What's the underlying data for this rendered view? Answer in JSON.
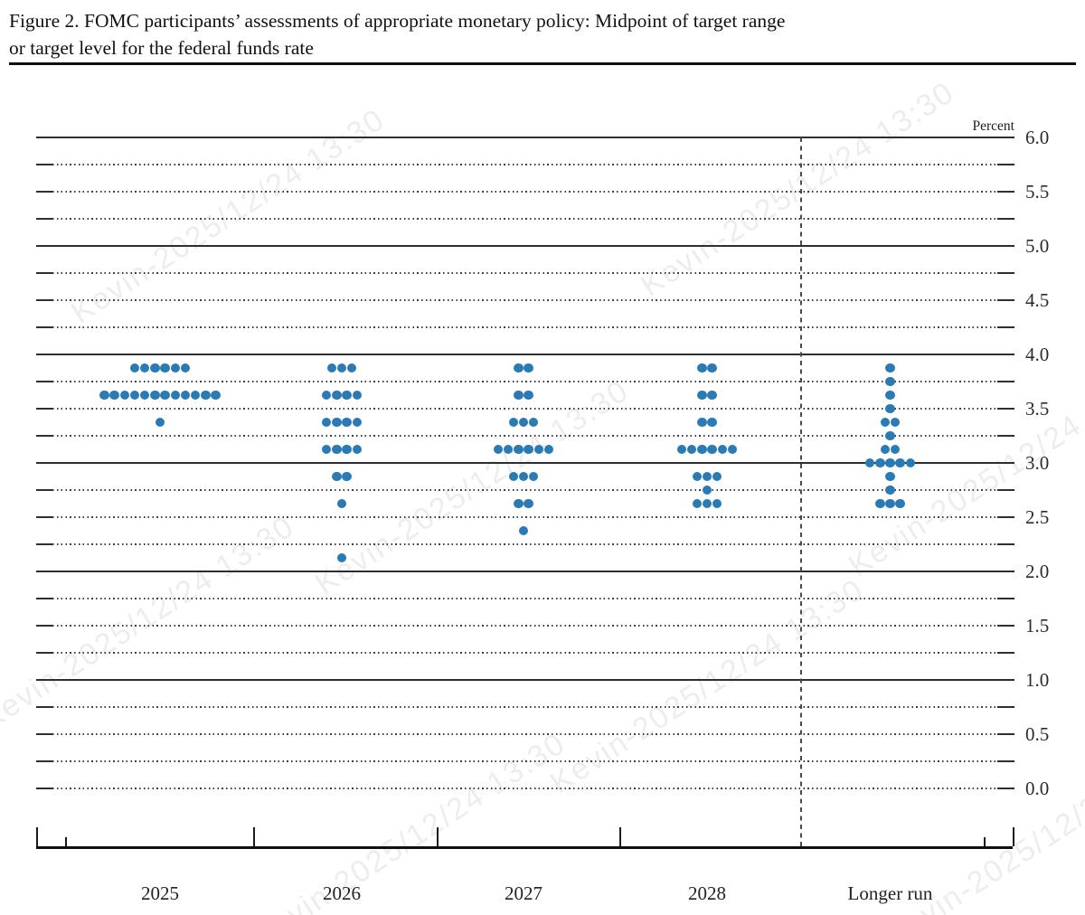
{
  "title": {
    "line1": "Figure 2. FOMC participants’ assessments of appropriate monetary policy: Midpoint of target range",
    "line2": "or target level for the federal funds rate"
  },
  "watermark": {
    "text": "Kevin-2025/12/24 13:30"
  },
  "chart_data": {
    "type": "scatter",
    "subtype": "fomc-dot-plot",
    "title": "Figure 2. FOMC participants’ assessments of appropriate monetary policy: Midpoint of target range or target level for the federal funds rate",
    "unit_label": "Percent",
    "x_categories": [
      "2025",
      "2026",
      "2027",
      "2028",
      "Longer run"
    ],
    "y_axis": {
      "min": 0.0,
      "max": 6.0,
      "tick_step": 0.5,
      "grid_step": 0.25,
      "tick_labels": [
        "6.0",
        "5.5",
        "5.0",
        "4.5",
        "4.0",
        "3.5",
        "3.0",
        "2.5",
        "2.0",
        "1.5",
        "1.0",
        "0.5",
        "0.0"
      ],
      "solid_gridlines": [
        6.0,
        5.0,
        4.0,
        3.0,
        2.0,
        1.0
      ],
      "grid": true
    },
    "separator_before_category": "Longer run",
    "series": [
      {
        "category": "2025",
        "dots": [
          {
            "rate": 3.875,
            "count": 6
          },
          {
            "rate": 3.625,
            "count": 12
          },
          {
            "rate": 3.375,
            "count": 1
          }
        ]
      },
      {
        "category": "2026",
        "dots": [
          {
            "rate": 3.875,
            "count": 3
          },
          {
            "rate": 3.625,
            "count": 4
          },
          {
            "rate": 3.375,
            "count": 4
          },
          {
            "rate": 3.125,
            "count": 4
          },
          {
            "rate": 2.875,
            "count": 2
          },
          {
            "rate": 2.625,
            "count": 1
          },
          {
            "rate": 2.125,
            "count": 1
          }
        ]
      },
      {
        "category": "2027",
        "dots": [
          {
            "rate": 3.875,
            "count": 2
          },
          {
            "rate": 3.625,
            "count": 2
          },
          {
            "rate": 3.375,
            "count": 3
          },
          {
            "rate": 3.125,
            "count": 6
          },
          {
            "rate": 2.875,
            "count": 3
          },
          {
            "rate": 2.625,
            "count": 2
          },
          {
            "rate": 2.375,
            "count": 1
          }
        ]
      },
      {
        "category": "2028",
        "dots": [
          {
            "rate": 3.875,
            "count": 2
          },
          {
            "rate": 3.625,
            "count": 2
          },
          {
            "rate": 3.375,
            "count": 2
          },
          {
            "rate": 3.125,
            "count": 6
          },
          {
            "rate": 2.875,
            "count": 3
          },
          {
            "rate": 2.75,
            "count": 1
          },
          {
            "rate": 2.625,
            "count": 3
          }
        ]
      },
      {
        "category": "Longer run",
        "dots": [
          {
            "rate": 3.875,
            "count": 1
          },
          {
            "rate": 3.75,
            "count": 1
          },
          {
            "rate": 3.625,
            "count": 1
          },
          {
            "rate": 3.5,
            "count": 1
          },
          {
            "rate": 3.375,
            "count": 2
          },
          {
            "rate": 3.25,
            "count": 1
          },
          {
            "rate": 3.125,
            "count": 2
          },
          {
            "rate": 3.0,
            "count": 5
          },
          {
            "rate": 2.875,
            "count": 1
          },
          {
            "rate": 2.75,
            "count": 1
          },
          {
            "rate": 2.625,
            "count": 3
          }
        ]
      }
    ],
    "colors": {
      "dot": "#2a7ab5",
      "solid_gridline": "#2e2e2e",
      "dotted_gridline": "#3c3c3c",
      "axis": "#101010"
    }
  }
}
